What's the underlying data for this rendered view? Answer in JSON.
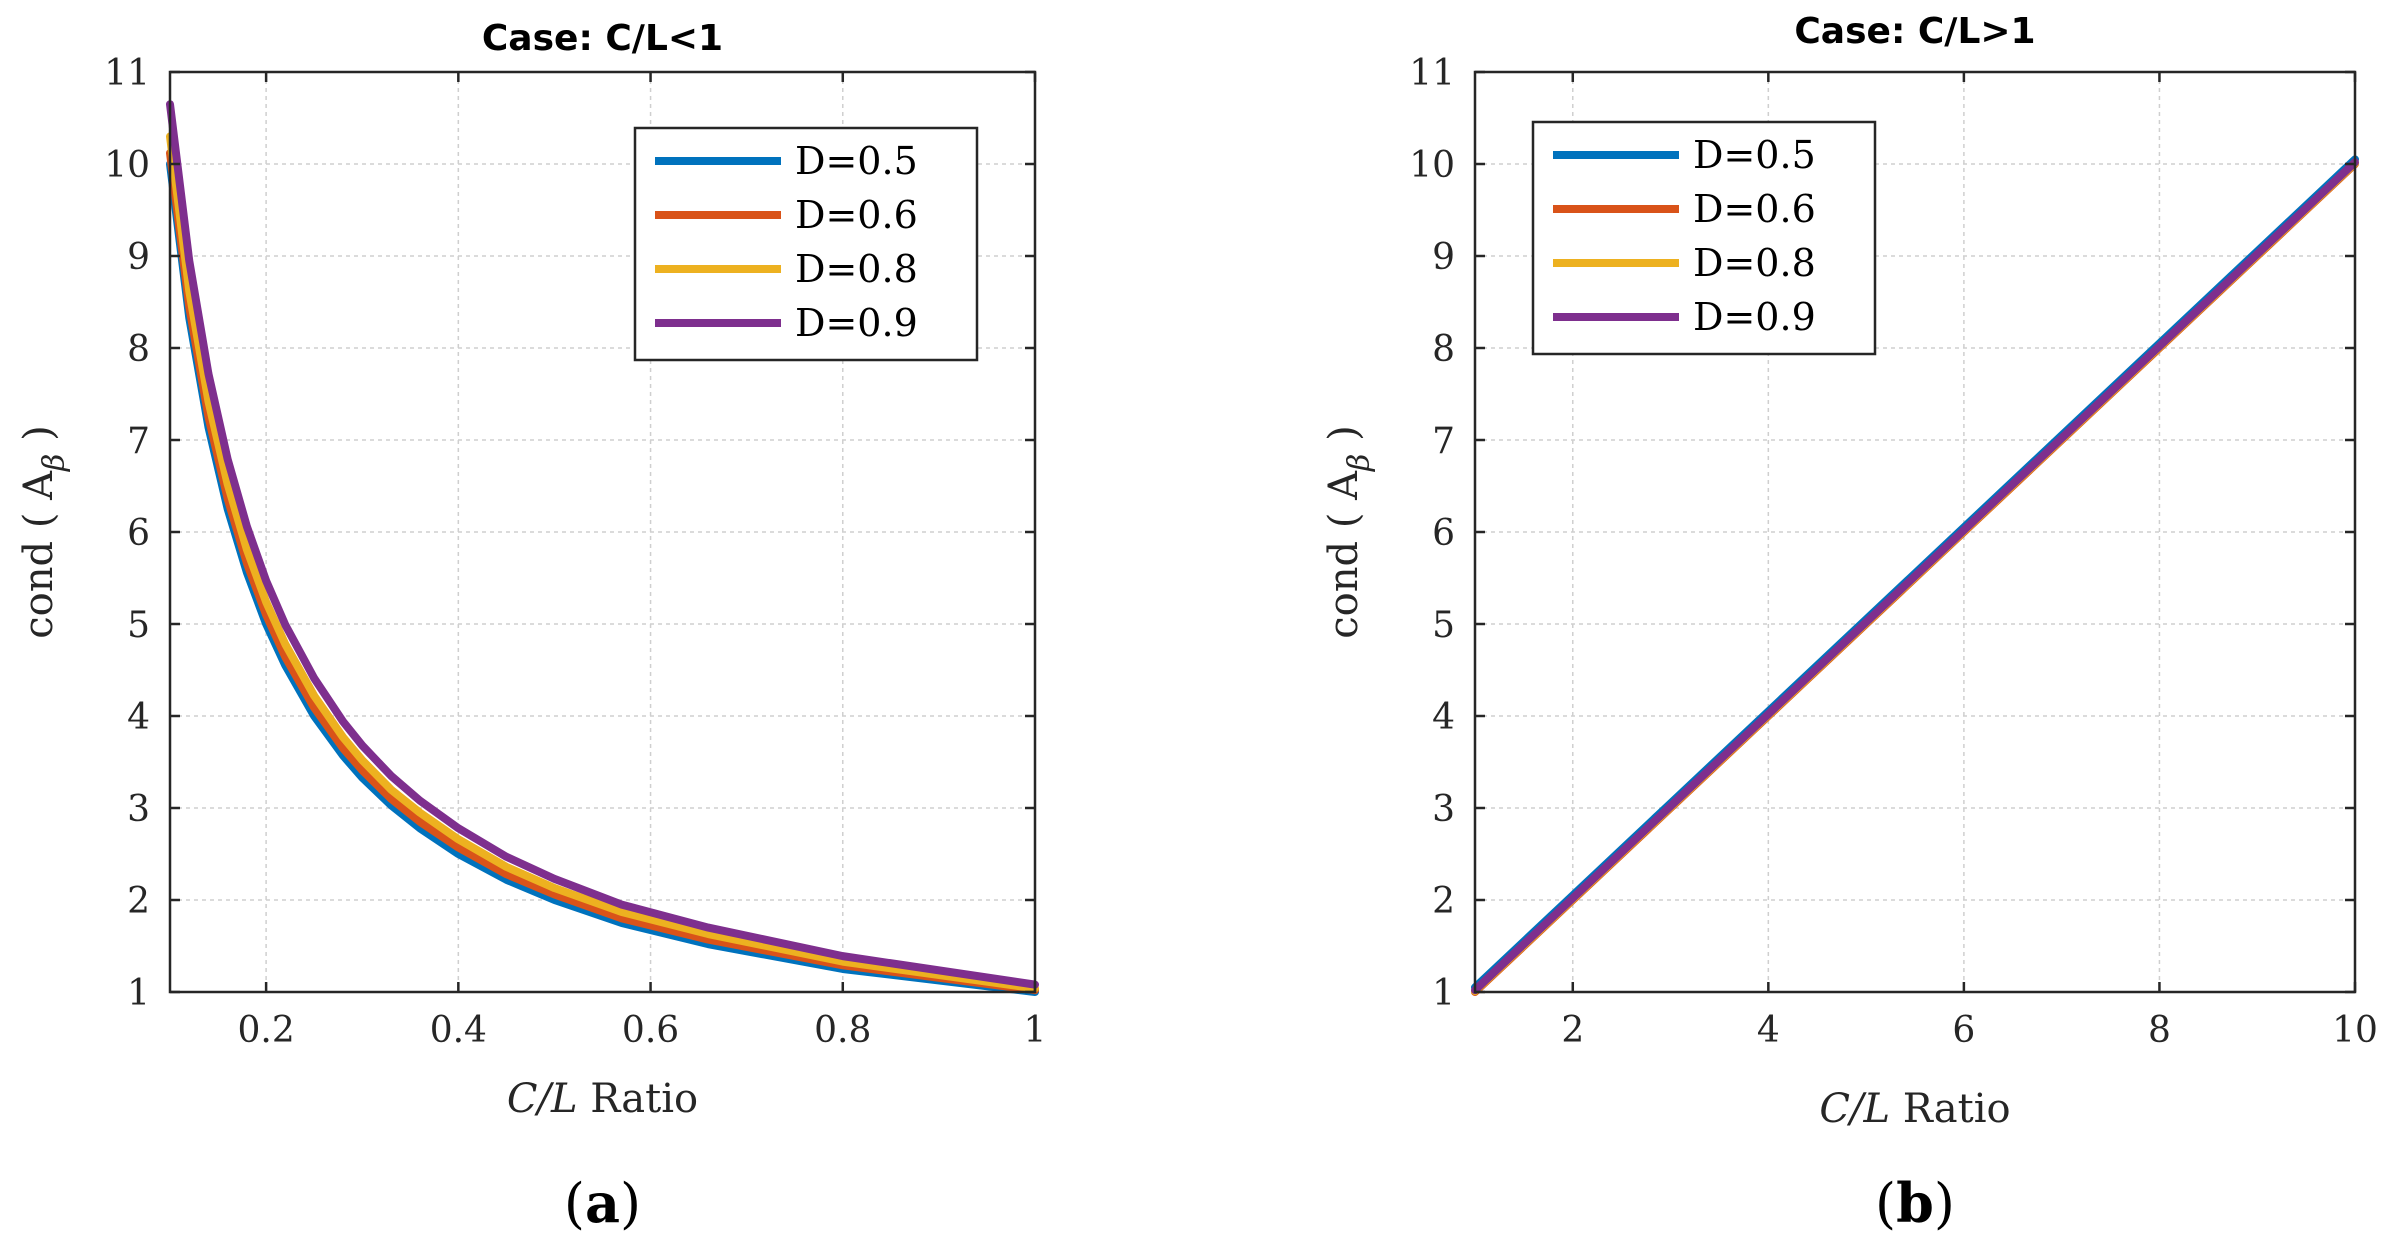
{
  "chart_data": [
    {
      "type": "line",
      "title": "Case: C/L<1",
      "xlabel_italic": "C/L",
      "xlabel_rest": " Ratio",
      "ylabel_main": "cond ( A",
      "ylabel_sub": "β",
      "ylabel_end": " )",
      "panel_open": "(",
      "panel_letter": "a",
      "panel_close": ")",
      "xlim": [
        0.1,
        1
      ],
      "ylim": [
        1,
        11
      ],
      "xticks": [
        0.2,
        0.4,
        0.6,
        0.8,
        1
      ],
      "xtick_labels": [
        "0.2",
        "0.4",
        "0.6",
        "0.8",
        "1"
      ],
      "yticks": [
        1,
        2,
        3,
        4,
        5,
        6,
        7,
        8,
        9,
        10,
        11
      ],
      "ytick_labels": [
        "1",
        "2",
        "3",
        "4",
        "5",
        "6",
        "7",
        "8",
        "9",
        "10",
        "11"
      ],
      "grid": true,
      "legend_position": "top-right",
      "x": [
        0.1,
        0.12,
        0.14,
        0.16,
        0.18,
        0.2,
        0.22,
        0.25,
        0.28,
        0.3,
        0.33,
        0.36,
        0.4,
        0.45,
        0.5,
        0.57,
        0.66,
        0.8,
        1.0
      ],
      "series": [
        {
          "name": "D=0.5",
          "color": "#0072BD",
          "values": [
            10.0,
            8.33,
            7.14,
            6.25,
            5.56,
            5.0,
            4.55,
            4.0,
            3.57,
            3.33,
            3.03,
            2.78,
            2.5,
            2.22,
            2.0,
            1.75,
            1.52,
            1.25,
            1.0
          ]
        },
        {
          "name": "D=0.6",
          "color": "#D95319",
          "values": [
            10.12,
            8.45,
            7.25,
            6.36,
            5.66,
            5.1,
            4.64,
            4.09,
            3.65,
            3.41,
            3.1,
            2.85,
            2.57,
            2.28,
            2.06,
            1.8,
            1.57,
            1.29,
            1.02
          ]
        },
        {
          "name": "D=0.8",
          "color": "#EDB120",
          "values": [
            10.3,
            8.62,
            7.42,
            6.52,
            5.81,
            5.24,
            4.78,
            4.22,
            3.77,
            3.52,
            3.2,
            2.95,
            2.66,
            2.36,
            2.13,
            1.87,
            1.63,
            1.33,
            1.04
          ]
        },
        {
          "name": "D=0.9",
          "color": "#7E2F8E",
          "values": [
            10.65,
            8.95,
            7.72,
            6.79,
            6.06,
            5.47,
            4.99,
            4.41,
            3.94,
            3.68,
            3.35,
            3.08,
            2.78,
            2.47,
            2.23,
            1.95,
            1.7,
            1.39,
            1.08
          ]
        }
      ]
    },
    {
      "type": "line",
      "title": "Case: C/L>1",
      "xlabel_italic": "C/L",
      "xlabel_rest": " Ratio",
      "ylabel_main": "cond ( A",
      "ylabel_sub": "β",
      "ylabel_end": " )",
      "panel_open": "(",
      "panel_letter": "b",
      "panel_close": ")",
      "xlim": [
        1,
        10
      ],
      "ylim": [
        1,
        11
      ],
      "xticks": [
        2,
        4,
        6,
        8,
        10
      ],
      "xtick_labels": [
        "2",
        "4",
        "6",
        "8",
        "10"
      ],
      "yticks": [
        1,
        2,
        3,
        4,
        5,
        6,
        7,
        8,
        9,
        10,
        11
      ],
      "ytick_labels": [
        "1",
        "2",
        "3",
        "4",
        "5",
        "6",
        "7",
        "8",
        "9",
        "10",
        "11"
      ],
      "grid": true,
      "legend_position": "top-left",
      "x": [
        1,
        2,
        3,
        4,
        5,
        6,
        7,
        8,
        9,
        10
      ],
      "series": [
        {
          "name": "D=0.5",
          "color": "#0072BD",
          "values": [
            1.05,
            2.05,
            3.05,
            4.05,
            5.05,
            6.05,
            7.05,
            8.05,
            9.05,
            10.05
          ]
        },
        {
          "name": "D=0.6",
          "color": "#D95319",
          "values": [
            1.0,
            2.0,
            3.0,
            4.0,
            5.0,
            6.0,
            7.0,
            8.0,
            9.0,
            10.0
          ]
        },
        {
          "name": "D=0.8",
          "color": "#EDB120",
          "values": [
            1.01,
            2.01,
            3.01,
            4.01,
            5.01,
            6.01,
            7.01,
            8.01,
            9.01,
            10.01
          ]
        },
        {
          "name": "D=0.9",
          "color": "#7E2F8E",
          "values": [
            1.02,
            2.02,
            3.02,
            4.02,
            5.02,
            6.02,
            7.02,
            8.02,
            9.02,
            10.02
          ]
        }
      ]
    }
  ]
}
